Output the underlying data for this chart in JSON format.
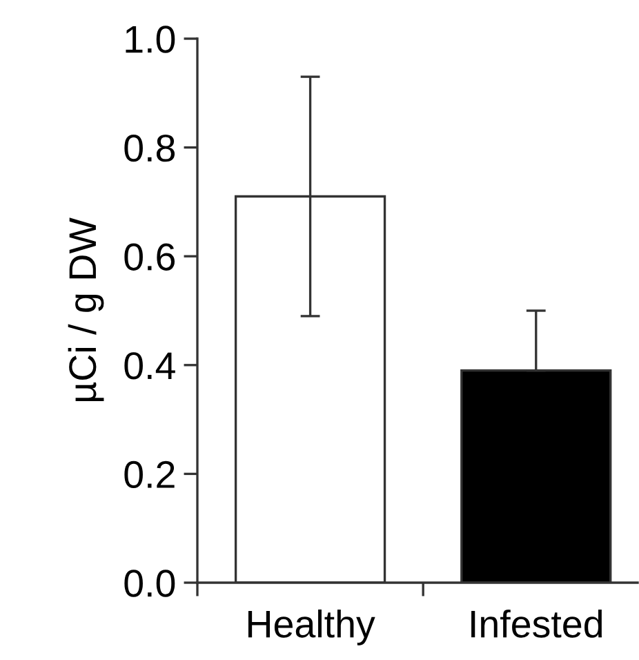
{
  "chart_data": {
    "type": "bar",
    "ylabel": "µCi / g DW",
    "categories": [
      "Healthy",
      "Infested"
    ],
    "values": [
      0.71,
      0.39
    ],
    "colors": [
      "#ffffff",
      "#000000"
    ],
    "errors": [
      [
        0.49,
        0.93
      ],
      [
        0.39,
        0.5
      ]
    ],
    "ylim": [
      0,
      1.0
    ],
    "yticks": [
      {
        "value": 0,
        "label": "0.0"
      },
      0.2,
      0.4,
      0.6,
      0.8,
      {
        "value": 1.0,
        "label": "1.0"
      }
    ],
    "grid": false
  }
}
